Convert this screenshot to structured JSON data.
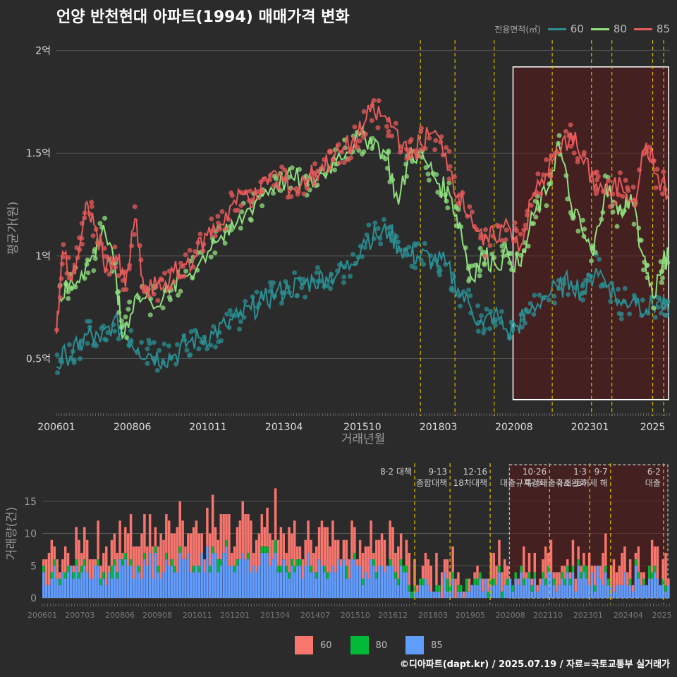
{
  "title": "언양 반천현대 아파트(1994) 매매가격 변화",
  "legend": {
    "title": "전용면적(㎡)",
    "series": [
      {
        "name": "60",
        "color": "#2b8f93"
      },
      {
        "name": "80",
        "color": "#90e080"
      },
      {
        "name": "85",
        "color": "#e85b5b"
      }
    ]
  },
  "footer": "©디아파트(dapt.kr) / 2025.07.19 / 자료=국토교통부 실거래가",
  "chart_data": [
    {
      "type": "line",
      "title": "언양 반천현대 아파트(1994) 매매가격 변화",
      "xlabel": "거래년월",
      "ylabel": "평균가(원)",
      "x_ticks": [
        "200601",
        "200806",
        "201011",
        "201304",
        "201510",
        "201803",
        "202008",
        "202301",
        "2025"
      ],
      "y_ticks": [
        {
          "v": 0.5,
          "label": "0.5억"
        },
        {
          "v": 1.0,
          "label": "1억"
        },
        {
          "v": 1.5,
          "label": "1.5억"
        },
        {
          "v": 2.0,
          "label": "2억"
        }
      ],
      "ylim": [
        0.22,
        2.05
      ],
      "xlim": [
        2006.0,
        2025.55
      ],
      "unit": "억원",
      "policy_lines": [
        2017.6,
        2018.7,
        2019.95,
        2021.8,
        2023.05,
        2023.7,
        2025.0,
        2025.35
      ],
      "highlight_range": [
        2020.55,
        2025.55
      ],
      "series": [
        {
          "name": "60",
          "color": "#2b8f93",
          "points": [
            [
              2006.0,
              0.46
            ],
            [
              2006.3,
              0.52
            ],
            [
              2006.7,
              0.55
            ],
            [
              2007.0,
              0.62
            ],
            [
              2007.4,
              0.58
            ],
            [
              2007.8,
              0.68
            ],
            [
              2008.2,
              0.62
            ],
            [
              2008.6,
              0.55
            ],
            [
              2009.0,
              0.52
            ],
            [
              2009.4,
              0.5
            ],
            [
              2009.8,
              0.52
            ],
            [
              2010.2,
              0.58
            ],
            [
              2010.6,
              0.6
            ],
            [
              2011.0,
              0.62
            ],
            [
              2011.4,
              0.66
            ],
            [
              2011.8,
              0.7
            ],
            [
              2012.2,
              0.74
            ],
            [
              2012.6,
              0.78
            ],
            [
              2013.0,
              0.82
            ],
            [
              2013.4,
              0.84
            ],
            [
              2013.8,
              0.86
            ],
            [
              2014.2,
              0.88
            ],
            [
              2014.6,
              0.9
            ],
            [
              2015.0,
              0.92
            ],
            [
              2015.4,
              0.96
            ],
            [
              2015.8,
              1.08
            ],
            [
              2016.2,
              1.1
            ],
            [
              2016.6,
              1.12
            ],
            [
              2016.9,
              1.05
            ],
            [
              2017.3,
              1.0
            ],
            [
              2017.6,
              1.0
            ],
            [
              2018.0,
              0.98
            ],
            [
              2018.4,
              0.96
            ],
            [
              2018.8,
              0.84
            ],
            [
              2019.2,
              0.75
            ],
            [
              2019.6,
              0.66
            ],
            [
              2019.95,
              0.72
            ],
            [
              2020.4,
              0.62
            ],
            [
              2020.7,
              0.66
            ],
            [
              2021.0,
              0.72
            ],
            [
              2021.5,
              0.8
            ],
            [
              2022.0,
              0.84
            ],
            [
              2022.4,
              0.88
            ],
            [
              2022.8,
              0.82
            ],
            [
              2023.2,
              0.94
            ],
            [
              2023.6,
              0.86
            ],
            [
              2024.0,
              0.76
            ],
            [
              2024.4,
              0.8
            ],
            [
              2024.8,
              0.74
            ],
            [
              2025.2,
              0.78
            ],
            [
              2025.5,
              0.72
            ]
          ]
        },
        {
          "name": "80",
          "color": "#90e080",
          "points": [
            [
              2006.1,
              0.8
            ],
            [
              2006.4,
              0.85
            ],
            [
              2006.8,
              0.92
            ],
            [
              2007.2,
              1.0
            ],
            [
              2007.5,
              1.15
            ],
            [
              2007.9,
              0.9
            ],
            [
              2008.1,
              0.6
            ],
            [
              2008.5,
              0.8
            ],
            [
              2009.0,
              0.78
            ],
            [
              2009.6,
              0.82
            ],
            [
              2010.0,
              0.9
            ],
            [
              2010.5,
              0.95
            ],
            [
              2011.0,
              1.08
            ],
            [
              2011.5,
              1.1
            ],
            [
              2012.0,
              1.2
            ],
            [
              2012.5,
              1.3
            ],
            [
              2013.0,
              1.35
            ],
            [
              2013.5,
              1.38
            ],
            [
              2014.0,
              1.35
            ],
            [
              2014.5,
              1.4
            ],
            [
              2015.0,
              1.5
            ],
            [
              2015.5,
              1.55
            ],
            [
              2016.0,
              1.58
            ],
            [
              2016.5,
              1.5
            ],
            [
              2016.9,
              1.25
            ],
            [
              2017.3,
              1.52
            ],
            [
              2017.8,
              1.45
            ],
            [
              2018.2,
              1.35
            ],
            [
              2018.6,
              1.28
            ],
            [
              2018.9,
              1.12
            ],
            [
              2019.2,
              0.9
            ],
            [
              2019.6,
              1.0
            ],
            [
              2019.95,
              0.97
            ],
            [
              2020.4,
              1.0
            ],
            [
              2020.8,
              0.95
            ],
            [
              2021.2,
              1.2
            ],
            [
              2021.6,
              1.3
            ],
            [
              2022.0,
              1.55
            ],
            [
              2022.4,
              1.25
            ],
            [
              2022.8,
              1.1
            ],
            [
              2023.1,
              1.0
            ],
            [
              2023.5,
              1.35
            ],
            [
              2023.9,
              1.2
            ],
            [
              2024.3,
              1.3
            ],
            [
              2024.7,
              1.0
            ],
            [
              2025.0,
              0.8
            ],
            [
              2025.3,
              0.95
            ],
            [
              2025.5,
              1.0
            ]
          ]
        },
        {
          "name": "85",
          "color": "#e85b5b",
          "points": [
            [
              2006.0,
              0.62
            ],
            [
              2006.2,
              1.02
            ],
            [
              2006.5,
              0.88
            ],
            [
              2006.8,
              1.1
            ],
            [
              2007.0,
              1.25
            ],
            [
              2007.3,
              1.1
            ],
            [
              2007.6,
              0.95
            ],
            [
              2007.9,
              1.0
            ],
            [
              2008.2,
              0.85
            ],
            [
              2008.5,
              1.18
            ],
            [
              2008.8,
              0.82
            ],
            [
              2009.2,
              0.85
            ],
            [
              2009.6,
              0.88
            ],
            [
              2010.0,
              0.95
            ],
            [
              2010.4,
              1.0
            ],
            [
              2010.8,
              1.1
            ],
            [
              2011.2,
              1.15
            ],
            [
              2011.6,
              1.25
            ],
            [
              2012.0,
              1.3
            ],
            [
              2012.4,
              1.28
            ],
            [
              2012.8,
              1.4
            ],
            [
              2013.2,
              1.38
            ],
            [
              2013.6,
              1.32
            ],
            [
              2014.0,
              1.38
            ],
            [
              2014.4,
              1.42
            ],
            [
              2014.8,
              1.48
            ],
            [
              2015.2,
              1.52
            ],
            [
              2015.6,
              1.58
            ],
            [
              2016.0,
              1.7
            ],
            [
              2016.4,
              1.68
            ],
            [
              2016.8,
              1.62
            ],
            [
              2017.2,
              1.48
            ],
            [
              2017.6,
              1.55
            ],
            [
              2018.0,
              1.6
            ],
            [
              2018.4,
              1.5
            ],
            [
              2018.8,
              1.3
            ],
            [
              2019.2,
              1.2
            ],
            [
              2019.6,
              1.05
            ],
            [
              2019.95,
              1.1
            ],
            [
              2020.4,
              1.15
            ],
            [
              2020.8,
              1.05
            ],
            [
              2021.2,
              1.3
            ],
            [
              2021.6,
              1.4
            ],
            [
              2022.0,
              1.5
            ],
            [
              2022.4,
              1.6
            ],
            [
              2022.8,
              1.45
            ],
            [
              2023.2,
              1.35
            ],
            [
              2023.6,
              1.3
            ],
            [
              2024.0,
              1.35
            ],
            [
              2024.4,
              1.28
            ],
            [
              2024.8,
              1.55
            ],
            [
              2025.1,
              1.4
            ],
            [
              2025.5,
              1.3
            ]
          ]
        }
      ]
    },
    {
      "type": "bar",
      "stacked": true,
      "xlabel": "",
      "ylabel": "거래량(건)",
      "x_ticks": [
        "200601",
        "200703",
        "200806",
        "200908",
        "201011",
        "201201",
        "201304",
        "201407",
        "201510",
        "201612",
        "201803",
        "201905",
        "202008",
        "202110",
        "202301",
        "202404",
        "2025"
      ],
      "y_ticks": [
        0,
        5,
        10,
        15
      ],
      "ylim": [
        0,
        20
      ],
      "xlim": [
        2006.0,
        2025.55
      ],
      "series": [
        {
          "name": "60",
          "color": "#f8766d"
        },
        {
          "name": "80",
          "color": "#00ba38"
        },
        {
          "name": "85",
          "color": "#619cff"
        }
      ],
      "annotations": [
        {
          "x": 2017.6,
          "lines": [
            "8·2 대책"
          ]
        },
        {
          "x": 2018.7,
          "lines": [
            "9·13",
            "종합대책"
          ]
        },
        {
          "x": 2019.95,
          "lines": [
            "12·16",
            "18차대책"
          ]
        },
        {
          "x": 2021.8,
          "lines": [
            "10·26",
            "대출규제강화"
          ]
        },
        {
          "x": 2023.05,
          "lines": [
            "1·3",
            "규제완화"
          ]
        },
        {
          "x": 2023.7,
          "lines": [
            "9·7",
            "특례대출축소 토허제 해"
          ]
        },
        {
          "x": 2025.35,
          "lines": [
            "6·2",
            "대출"
          ]
        }
      ],
      "highlight_range": [
        2020.55,
        2025.55
      ]
    }
  ]
}
